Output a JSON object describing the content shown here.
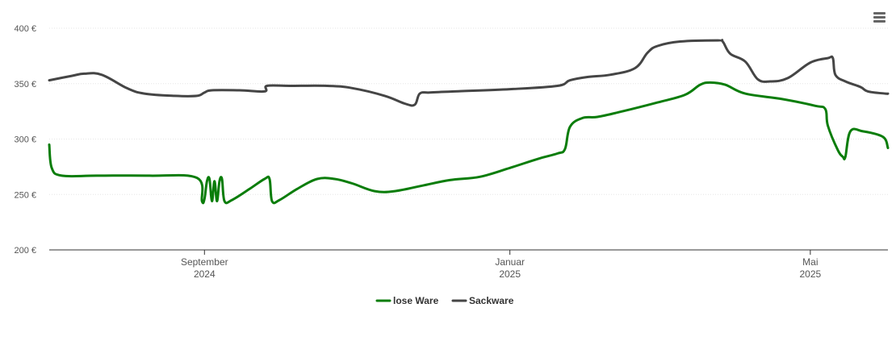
{
  "colors": {
    "lose_ware": "#0a7d0a",
    "sackware": "#454545"
  },
  "menu": {
    "icon": "hamburger-menu-icon"
  },
  "chart_data": {
    "type": "line",
    "title": "",
    "xlabel": "",
    "ylabel": "",
    "ylim": [
      200,
      400
    ],
    "yticks": [
      {
        "value": 200,
        "label": "200 €"
      },
      {
        "value": 250,
        "label": "250 €"
      },
      {
        "value": 300,
        "label": "300 €"
      },
      {
        "value": 350,
        "label": "350 €"
      },
      {
        "value": 400,
        "label": "400 €"
      }
    ],
    "xlim": [
      "2024-07-01",
      "2025-06-01"
    ],
    "xticks": [
      {
        "date": "2024-09-01",
        "label1": "September",
        "label2": "2024"
      },
      {
        "date": "2025-01-01",
        "label1": "Januar",
        "label2": "2025"
      },
      {
        "date": "2025-05-01",
        "label1": "Mai",
        "label2": "2025"
      }
    ],
    "legend_position": "bottom-center",
    "grid": true,
    "series": [
      {
        "name": "lose Ware",
        "color": "#0a7d0a",
        "points": [
          [
            "2024-07-01",
            295
          ],
          [
            "2024-07-02",
            274
          ],
          [
            "2024-07-06",
            267
          ],
          [
            "2024-07-20",
            267
          ],
          [
            "2024-08-10",
            267
          ],
          [
            "2024-08-29",
            265
          ],
          [
            "2024-08-31",
            244
          ],
          [
            "2024-09-01",
            246
          ],
          [
            "2024-09-02",
            262
          ],
          [
            "2024-09-03",
            264
          ],
          [
            "2024-09-04",
            244
          ],
          [
            "2024-09-05",
            262
          ],
          [
            "2024-09-06",
            244
          ],
          [
            "2024-09-07",
            262
          ],
          [
            "2024-09-08",
            264
          ],
          [
            "2024-09-09",
            244
          ],
          [
            "2024-09-12",
            245
          ],
          [
            "2024-09-19",
            255
          ],
          [
            "2024-09-25",
            264
          ],
          [
            "2024-09-27",
            264
          ],
          [
            "2024-09-28",
            244
          ],
          [
            "2024-10-01",
            245
          ],
          [
            "2024-10-08",
            255
          ],
          [
            "2024-10-16",
            264
          ],
          [
            "2024-10-23",
            264
          ],
          [
            "2024-10-30",
            260
          ],
          [
            "2024-11-08",
            253
          ],
          [
            "2024-11-16",
            253
          ],
          [
            "2024-11-27",
            258
          ],
          [
            "2024-12-08",
            263
          ],
          [
            "2024-12-20",
            266
          ],
          [
            "2025-01-01",
            274
          ],
          [
            "2025-01-12",
            282
          ],
          [
            "2025-01-20",
            287
          ],
          [
            "2025-01-23",
            291
          ],
          [
            "2025-01-25",
            311
          ],
          [
            "2025-01-30",
            319
          ],
          [
            "2025-02-05",
            320
          ],
          [
            "2025-02-15",
            325
          ],
          [
            "2025-03-01",
            333
          ],
          [
            "2025-03-12",
            340
          ],
          [
            "2025-03-18",
            349
          ],
          [
            "2025-03-22",
            351
          ],
          [
            "2025-03-28",
            349
          ],
          [
            "2025-04-05",
            341
          ],
          [
            "2025-04-20",
            336
          ],
          [
            "2025-05-03",
            330
          ],
          [
            "2025-05-07",
            327
          ],
          [
            "2025-05-08",
            312
          ],
          [
            "2025-05-12",
            290
          ],
          [
            "2025-05-14",
            284
          ],
          [
            "2025-05-15",
            284
          ],
          [
            "2025-05-17",
            307
          ],
          [
            "2025-05-22",
            307
          ],
          [
            "2025-05-30",
            302
          ],
          [
            "2025-06-01",
            292
          ]
        ]
      },
      {
        "name": "Sackware",
        "color": "#454545",
        "points": [
          [
            "2024-07-01",
            353
          ],
          [
            "2024-07-10",
            357
          ],
          [
            "2024-07-15",
            359
          ],
          [
            "2024-07-22",
            358
          ],
          [
            "2024-08-01",
            346
          ],
          [
            "2024-08-08",
            341
          ],
          [
            "2024-08-20",
            339
          ],
          [
            "2024-08-29",
            339
          ],
          [
            "2024-09-01",
            342
          ],
          [
            "2024-09-04",
            344
          ],
          [
            "2024-09-15",
            344
          ],
          [
            "2024-09-25",
            343
          ],
          [
            "2024-09-26",
            348
          ],
          [
            "2024-10-05",
            348
          ],
          [
            "2024-10-20",
            348
          ],
          [
            "2024-10-30",
            346
          ],
          [
            "2024-11-12",
            339
          ],
          [
            "2024-11-20",
            332
          ],
          [
            "2024-11-24",
            331
          ],
          [
            "2024-11-26",
            341
          ],
          [
            "2024-11-30",
            342
          ],
          [
            "2024-12-10",
            343
          ],
          [
            "2025-01-01",
            345
          ],
          [
            "2025-01-20",
            348
          ],
          [
            "2025-01-25",
            353
          ],
          [
            "2025-02-01",
            356
          ],
          [
            "2025-02-10",
            358
          ],
          [
            "2025-02-20",
            364
          ],
          [
            "2025-02-25",
            378
          ],
          [
            "2025-03-01",
            384
          ],
          [
            "2025-03-10",
            388
          ],
          [
            "2025-03-25",
            389
          ],
          [
            "2025-03-27",
            388
          ],
          [
            "2025-03-30",
            377
          ],
          [
            "2025-04-05",
            370
          ],
          [
            "2025-04-10",
            354
          ],
          [
            "2025-04-15",
            352
          ],
          [
            "2025-04-22",
            355
          ],
          [
            "2025-05-01",
            369
          ],
          [
            "2025-05-08",
            373
          ],
          [
            "2025-05-10",
            373
          ],
          [
            "2025-05-11",
            358
          ],
          [
            "2025-05-15",
            352
          ],
          [
            "2025-05-21",
            347
          ],
          [
            "2025-05-24",
            343
          ],
          [
            "2025-05-31",
            341
          ],
          [
            "2025-06-01",
            341
          ]
        ]
      }
    ]
  }
}
